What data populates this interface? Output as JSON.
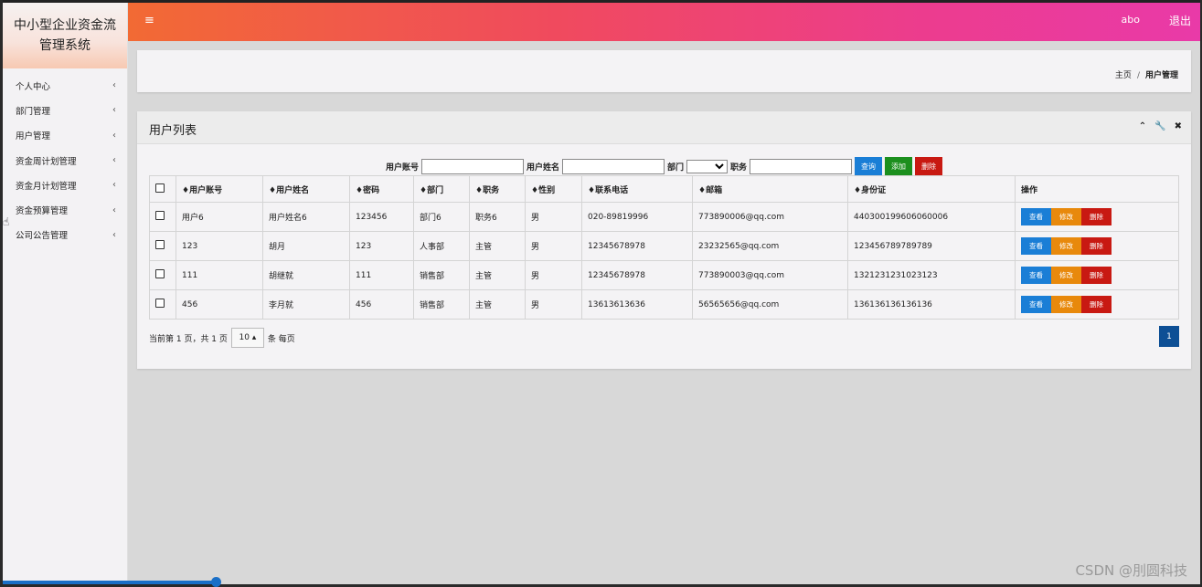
{
  "app": {
    "title": "中小型企业资金流管理系统"
  },
  "sidebar": {
    "items": [
      {
        "label": "个人中心"
      },
      {
        "label": "部门管理"
      },
      {
        "label": "用户管理"
      },
      {
        "label": "资金周计划管理"
      },
      {
        "label": "资金月计划管理"
      },
      {
        "label": "资金预算管理"
      },
      {
        "label": "公司公告管理"
      }
    ],
    "chevron": "‹"
  },
  "header": {
    "menu_icon": "≡",
    "username": "abo",
    "logout": "退出"
  },
  "breadcrumb": {
    "home": "主页",
    "separator": "/",
    "current": "用户管理"
  },
  "card": {
    "title": "用户列表",
    "tools": {
      "collapse": "⌃",
      "settings": "🔧",
      "close": "✖"
    }
  },
  "search": {
    "account_label": "用户账号",
    "name_label": "用户姓名",
    "dept_label": "部门",
    "position_label": "职务",
    "query_button": "查询",
    "add_button": "添加",
    "delete_button": "删除"
  },
  "table": {
    "headers": [
      "♦用户账号",
      "♦用户姓名",
      "♦密码",
      "♦部门",
      "♦职务",
      "♦性别",
      "♦联系电话",
      "♦邮箱",
      "♦身份证",
      "操作"
    ],
    "rows": [
      [
        "用户6",
        "用户姓名6",
        "123456",
        "部门6",
        "职务6",
        "男",
        "020-89819996",
        "773890006@qq.com",
        "440300199606060006"
      ],
      [
        "123",
        "胡月",
        "123",
        "人事部",
        "主管",
        "男",
        "12345678978",
        "23232565@qq.com",
        "123456789789789"
      ],
      [
        "111",
        "胡继就",
        "111",
        "销售部",
        "主管",
        "男",
        "12345678978",
        "773890003@qq.com",
        "1321231231023123"
      ],
      [
        "456",
        "李月就",
        "456",
        "销售部",
        "主管",
        "男",
        "13613613636",
        "56565656@qq.com",
        "136136136136136"
      ]
    ],
    "row_actions": {
      "view": "查看",
      "edit": "修改",
      "delete": "删除"
    }
  },
  "pagination": {
    "info": "当前第 1 页，共 1 页",
    "page_size": "10 ▴",
    "per_page_suffix": "条 每页",
    "current_page": "1"
  },
  "watermark": "CSDN @刖圆科技",
  "colors": {
    "header_gradient_start": "#f26a34",
    "header_gradient_end": "#e93aa8",
    "btn_blue": "#1a7ed6",
    "btn_green": "#1c8f1e",
    "btn_red": "#c81912",
    "btn_orange": "#e8890c",
    "page_active": "#0d4f95"
  }
}
